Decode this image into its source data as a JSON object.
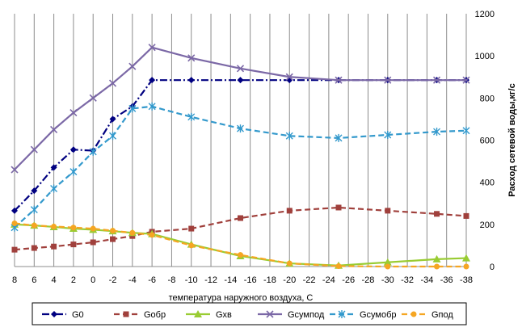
{
  "chart_data": {
    "type": "line",
    "xlabel": "температура наружного воздуха, С",
    "ylabel": "Расход сетевой воды,кг/с",
    "x_ticks": [
      "8",
      "6",
      "4",
      "2",
      "0",
      "-2",
      "-4",
      "-6",
      "-8",
      "-10",
      "-12",
      "-14",
      "-16",
      "-18",
      "-20",
      "-22",
      "-24",
      "-26",
      "-28",
      "-30",
      "-32",
      "-34",
      "-36",
      "-38"
    ],
    "ylim": [
      0,
      1200
    ],
    "y_ticks": [
      0,
      200,
      400,
      600,
      800,
      1000,
      1200
    ],
    "grid": "vertical",
    "legend_position": "bottom",
    "series": [
      {
        "name": "G0",
        "color": "#000080",
        "marker": "diamond",
        "dash": "dashdot",
        "x": [
          8,
          6,
          4,
          2,
          0,
          -2,
          -4,
          -6,
          -10,
          -15,
          -20,
          -25,
          -30,
          -35,
          -38
        ],
        "y": [
          265,
          360,
          470,
          555,
          550,
          700,
          760,
          885,
          885,
          885,
          885,
          885,
          885,
          885,
          885
        ]
      },
      {
        "name": "Gобр",
        "color": "#A0403C",
        "marker": "square",
        "dash": "dashed",
        "x": [
          8,
          6,
          4,
          2,
          0,
          -2,
          -4,
          -6,
          -10,
          -15,
          -20,
          -25,
          -30,
          -35,
          -38
        ],
        "y": [
          80,
          88,
          95,
          105,
          115,
          130,
          145,
          165,
          180,
          230,
          265,
          280,
          265,
          250,
          240
        ]
      },
      {
        "name": "Gхв",
        "color": "#99CC33",
        "marker": "triangle",
        "dash": "solid",
        "x": [
          8,
          6,
          4,
          2,
          0,
          -2,
          -4,
          -6,
          -10,
          -15,
          -20,
          -25,
          -30,
          -35,
          -38
        ],
        "y": [
          200,
          195,
          188,
          180,
          175,
          168,
          160,
          155,
          105,
          50,
          15,
          5,
          20,
          35,
          40
        ]
      },
      {
        "name": "Gсумпод",
        "color": "#7B68A6",
        "marker": "cross",
        "dash": "solid",
        "x": [
          8,
          6,
          4,
          2,
          0,
          -2,
          -4,
          -6,
          -10,
          -15,
          -20,
          -25,
          -30,
          -35,
          -38
        ],
        "y": [
          460,
          555,
          650,
          730,
          800,
          870,
          950,
          1040,
          990,
          940,
          900,
          885,
          885,
          885,
          885
        ]
      },
      {
        "name": "Gсумобр",
        "color": "#3399CC",
        "marker": "star",
        "dash": "dashed",
        "x": [
          8,
          6,
          4,
          2,
          0,
          -2,
          -4,
          -6,
          -10,
          -15,
          -20,
          -25,
          -30,
          -35,
          -38
        ],
        "y": [
          185,
          270,
          370,
          450,
          545,
          620,
          750,
          760,
          710,
          655,
          620,
          610,
          625,
          640,
          645
        ]
      },
      {
        "name": "Gпод",
        "color": "#F5A623",
        "marker": "circle",
        "dash": "dashed",
        "x": [
          8,
          6,
          4,
          2,
          0,
          -2,
          -4,
          -6,
          -10,
          -15,
          -20,
          -25,
          -30,
          -35,
          -38
        ],
        "y": [
          205,
          195,
          190,
          185,
          180,
          170,
          160,
          150,
          100,
          55,
          15,
          2,
          0,
          0,
          0
        ]
      }
    ]
  }
}
